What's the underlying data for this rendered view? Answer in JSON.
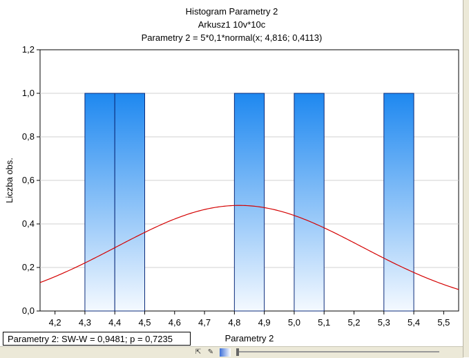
{
  "chart_data": {
    "type": "bar",
    "title_lines": [
      "Histogram   Parametry 2",
      "Arkusz1 10v*10c",
      "Parametry 2 = 5*0,1*normal(x; 4,816; 0,4113)"
    ],
    "xlabel": "Parametry 2",
    "ylabel": "Liczba obs.",
    "xlim": [
      4.15,
      5.55
    ],
    "ylim": [
      0,
      1.2
    ],
    "x_ticks": [
      "4,2",
      "4,3",
      "4,4",
      "4,5",
      "4,6",
      "4,7",
      "4,8",
      "4,9",
      "5,0",
      "5,1",
      "5,2",
      "5,3",
      "5,4",
      "5,5"
    ],
    "y_ticks": [
      "0,0",
      "0,2",
      "0,4",
      "0,6",
      "0,8",
      "1,0",
      "1,2"
    ],
    "bins": [
      {
        "start": 4.3,
        "end": 4.4,
        "count": 1
      },
      {
        "start": 4.4,
        "end": 4.5,
        "count": 1
      },
      {
        "start": 4.8,
        "end": 4.9,
        "count": 1
      },
      {
        "start": 5.0,
        "end": 5.1,
        "count": 1
      },
      {
        "start": 5.3,
        "end": 5.4,
        "count": 1
      }
    ],
    "fit_curve": {
      "type": "normal",
      "n_times_width": 0.5,
      "mean": 4.816,
      "sd": 0.4113,
      "color": "#d40000"
    },
    "bar_color_top": "#1e88f0",
    "bar_color_bottom": "#f4f9ff",
    "bar_border": "#0a2a7a",
    "grid": true
  },
  "stats_text": "Parametry 2:   SW-W = 0,9481; p = 0,7235",
  "toolbar_icons": [
    "select-arrow-icon",
    "brush-icon",
    "gradient-icon",
    "scroll-slider-icon"
  ]
}
